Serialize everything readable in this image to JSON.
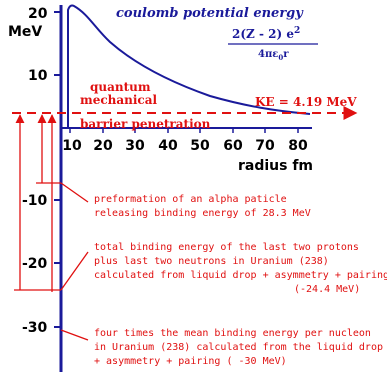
{
  "axes": {
    "y_unit": "MeV",
    "y_ticks": [
      "20",
      "10",
      "-10",
      "-20",
      "-30"
    ],
    "x_ticks": [
      "10",
      "20",
      "30",
      "40",
      "50",
      "60",
      "70",
      "80"
    ],
    "x_label": "radius  fm"
  },
  "curve": {
    "label": "coulomb potential energy",
    "numerator": "2(Z - 2) e",
    "numerator_exp": "2",
    "denominator": "4πε",
    "denominator_sub": "0",
    "denominator_end": "r"
  },
  "ke_label": "KE = 4.19 MeV",
  "penetration": [
    "quantum",
    "mechanical",
    "barrier penetration"
  ],
  "notes": [
    [
      "preformation of an alpha paticle",
      "releasing binding energy of 28.3 MeV"
    ],
    [
      "total binding energy of the last two protons",
      "plus last two neutrons in Uranium (238)",
      "calculated from liquid drop + asymmetry + pairing",
      "(-24.4 MeV)"
    ],
    [
      "four times the mean binding energy per nucleon",
      "in Uranium (238) calculated from the liquid drop",
      "+ asymmetry + pairing ( -30 MeV)"
    ]
  ]
}
